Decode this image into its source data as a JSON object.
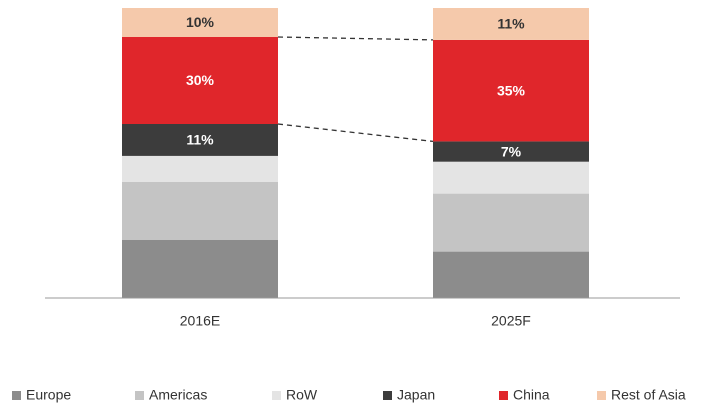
{
  "chart_data": {
    "type": "stacked_bar",
    "categories": [
      "2016E",
      "2025F"
    ],
    "series": [
      {
        "name": "Europe",
        "color": "#8c8c8c",
        "values": [
          20,
          16
        ]
      },
      {
        "name": "Americas",
        "color": "#c4c4c4",
        "values": [
          20,
          20
        ]
      },
      {
        "name": "RoW",
        "color": "#e4e4e4",
        "values": [
          9,
          11
        ]
      },
      {
        "name": "Japan",
        "color": "#3c3c3c",
        "values": [
          11,
          7
        ],
        "value_labels": [
          "11%",
          "7%"
        ]
      },
      {
        "name": "China",
        "color": "#e0262b",
        "values": [
          30,
          35
        ],
        "value_labels": [
          "30%",
          "35%"
        ]
      },
      {
        "name": "Rest of Asia",
        "color": "#f5c9ab",
        "values": [
          10,
          11
        ],
        "value_labels": [
          "10%",
          "11%"
        ]
      }
    ],
    "ylim": [
      0,
      100
    ],
    "legend": "bottom"
  }
}
